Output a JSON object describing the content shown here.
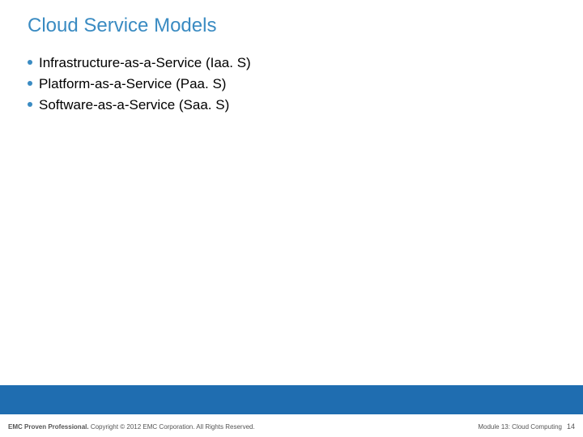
{
  "colors": {
    "title_color": "#3a8bc2",
    "bullet_dot_color": "#3a8bc2",
    "bullet_text_color": "#000000",
    "blue_bar_color": "#1f6db0",
    "footer_color": "#555555",
    "background_color": "#ffffff"
  },
  "title": "Cloud Service Models",
  "bullets": [
    "Infrastructure-as-a-Service (Iaa. S)",
    "Platform-as-a-Service (Paa. S)",
    "Software-as-a-Service (Saa. S)"
  ],
  "footer": {
    "left_bold": "EMC Proven Professional.",
    "left_rest": " Copyright © 2012 EMC Corporation. All Rights Reserved.",
    "module": "Module 13: Cloud Computing",
    "page_number": "14"
  },
  "fontsizes": {
    "title": 24,
    "bullet": 17,
    "footer": 8,
    "page_number": 9
  }
}
